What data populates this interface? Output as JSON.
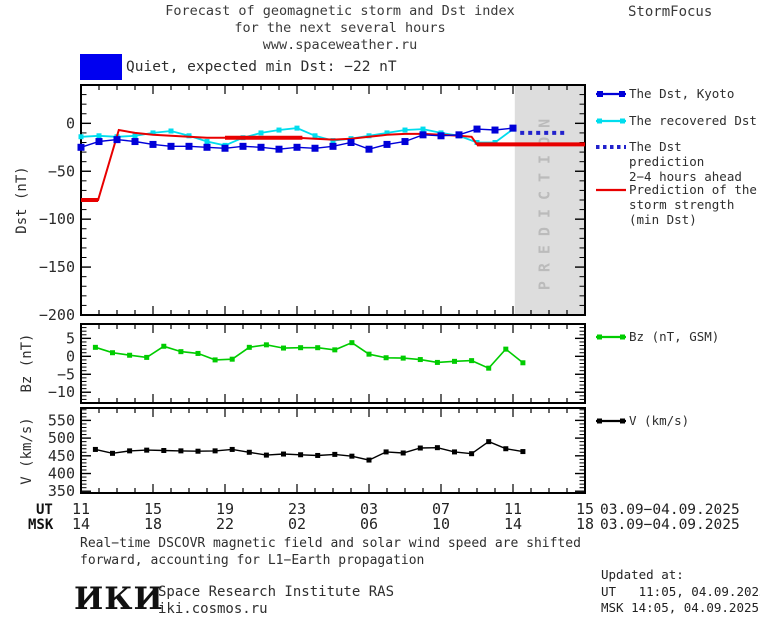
{
  "title": {
    "line1": "Forecast of geomagnetic storm and Dst index",
    "line2": "for the next several hours",
    "line3": "www.spaceweather.ru",
    "brand": "StormFocus"
  },
  "status_banner": {
    "color": "#0000F0",
    "label": "Quiet, expected min Dst: −22 nT"
  },
  "prediction_band": {
    "label": "PREDICTION",
    "fill": "#DDDDDD",
    "text_color": "#BBBBBB"
  },
  "legend": {
    "dst_kyoto": "The Dst, Kyoto",
    "recovered": "The recovered Dst",
    "prediction_line1": "The Dst prediction",
    "prediction_line2": "2−4 hours ahead",
    "storm_line1": "Prediction of the",
    "storm_line2": "storm strength",
    "storm_line3": "(min Dst)",
    "bz": "Bz (nT, GSM)",
    "v": "V (km/s)"
  },
  "xaxis": {
    "ut_label": "UT",
    "msk_label": "MSK",
    "ut_ticks": [
      "11",
      "15",
      "19",
      "23",
      "03",
      "07",
      "11",
      "15"
    ],
    "msk_ticks": [
      "14",
      "18",
      "22",
      "02",
      "06",
      "10",
      "14",
      "18"
    ],
    "ut_date": "03.09−04.09.2025",
    "msk_date": "03.09−04.09.2025"
  },
  "footnote": {
    "line1": "Real−time DSCOVR magnetic field and solar wind speed are shifted",
    "line2": "forward, accounting for L1−Earth propagation"
  },
  "footer": {
    "logo": "ИКИ",
    "institute": "Space Research Institute RAS",
    "site": "iki.cosmos.ru",
    "updated_label": "Updated at:",
    "updated_ut": "UT   11:05, 04.09.2025",
    "updated_msk": "MSK 14:05, 04.09.2025"
  },
  "chart_data": [
    {
      "id": "dst",
      "type": "line",
      "ylabel": "Dst (nT)",
      "yticks": [
        0,
        -50,
        -100,
        -150,
        -200
      ],
      "ylim": [
        40,
        -200
      ],
      "xlim_hours": [
        0,
        28
      ],
      "prediction_band_hours": [
        24.1,
        27.95
      ],
      "series": [
        {
          "name": "recovered_dst",
          "label": "The recovered Dst",
          "color": "#00DDEE",
          "width": 1.8,
          "marker": 5,
          "x": [
            0,
            1,
            2,
            3,
            4,
            5,
            6,
            7,
            8,
            9,
            10,
            11,
            12,
            13,
            14,
            15,
            16,
            17,
            18,
            19,
            20,
            21,
            22,
            23,
            24
          ],
          "y": [
            -14,
            -13,
            -14,
            -13,
            -10,
            -8,
            -13,
            -19,
            -23,
            -15,
            -10,
            -7,
            -5,
            -13,
            -18,
            -16,
            -13,
            -10,
            -7,
            -6,
            -10,
            -13,
            -20,
            -20,
            -6
          ]
        },
        {
          "name": "storm_prediction",
          "label": "Prediction of the storm strength (min Dst)",
          "color": "#E80000",
          "width": 2,
          "marker": 0,
          "x": [
            0,
            0.95,
            2.1,
            3,
            4,
            5,
            6,
            7,
            8,
            9,
            10,
            11,
            12,
            13,
            14,
            15,
            16,
            17,
            18,
            19,
            20,
            21,
            21.7,
            22,
            28
          ],
          "y": [
            -80,
            -80,
            -7,
            -10,
            -12,
            -13,
            -14,
            -15,
            -15,
            -15,
            -15,
            -15,
            -15,
            -16,
            -17,
            -16,
            -14,
            -12,
            -11,
            -11,
            -12,
            -13,
            -14,
            -22,
            -22
          ],
          "thick_segments": [
            [
              0,
              0.95,
              -80
            ],
            [
              8,
              12.3,
              -15
            ],
            [
              22,
              28,
              -22
            ]
          ]
        },
        {
          "name": "dst_kyoto",
          "label": "The Dst, Kyoto",
          "color": "#0000D8",
          "width": 1.4,
          "marker": 7,
          "x": [
            0,
            1,
            2,
            3,
            4,
            5,
            6,
            7,
            8,
            9,
            10,
            11,
            12,
            13,
            14,
            15,
            16,
            17,
            18,
            19,
            20,
            21,
            22,
            23,
            24
          ],
          "y": [
            -25,
            -19,
            -17,
            -19,
            -22,
            -24,
            -24,
            -25,
            -26,
            -24,
            -25,
            -27,
            -25,
            -26,
            -24,
            -20,
            -27,
            -22,
            -19,
            -12,
            -13,
            -12,
            -6,
            -7,
            -5
          ]
        },
        {
          "name": "dst_prediction",
          "label": "The Dst prediction 2−4 hours ahead",
          "color": "#2222CC",
          "width": 4,
          "marker": 0,
          "dash": "4 4",
          "x": [
            24.4,
            27
          ],
          "y": [
            -10,
            -10
          ]
        }
      ]
    },
    {
      "id": "bz",
      "type": "line",
      "ylabel": "Bz (nT)",
      "yticks": [
        5,
        0,
        -5,
        -10
      ],
      "ylim": [
        9,
        -13
      ],
      "xlim_hours": [
        0,
        28
      ],
      "series": [
        {
          "name": "bz_gsm",
          "label": "Bz (nT, GSM)",
          "color": "#00CC00",
          "width": 1.6,
          "marker": 5,
          "x": [
            0.8,
            1.75,
            2.7,
            3.65,
            4.6,
            5.55,
            6.5,
            7.45,
            8.4,
            9.35,
            10.3,
            11.25,
            12.2,
            13.15,
            14.1,
            15.05,
            16,
            16.95,
            17.9,
            18.85,
            19.8,
            20.75,
            21.7,
            22.65,
            23.6,
            24.55
          ],
          "y": [
            2.5,
            1.0,
            0.3,
            -0.3,
            2.8,
            1.3,
            0.8,
            -1.0,
            -0.8,
            2.5,
            3.2,
            2.3,
            2.4,
            2.4,
            1.8,
            3.8,
            0.6,
            -0.4,
            -0.5,
            -0.9,
            -1.7,
            -1.4,
            -1.2,
            -3.3,
            2.0,
            -1.8
          ]
        }
      ]
    },
    {
      "id": "v",
      "type": "line",
      "ylabel": "V (km/s)",
      "yticks": [
        550,
        500,
        450,
        400,
        350
      ],
      "ylim": [
        585,
        345
      ],
      "xlim_hours": [
        0,
        28
      ],
      "series": [
        {
          "name": "solar_wind_speed",
          "label": "V (km/s)",
          "color": "#000000",
          "width": 1.4,
          "marker": 5,
          "x": [
            0.8,
            1.75,
            2.7,
            3.65,
            4.6,
            5.55,
            6.5,
            7.45,
            8.4,
            9.35,
            10.3,
            11.25,
            12.2,
            13.15,
            14.1,
            15.05,
            16,
            16.95,
            17.9,
            18.85,
            19.8,
            20.75,
            21.7,
            22.65,
            23.6,
            24.55
          ],
          "y": [
            468,
            457,
            464,
            466,
            465,
            464,
            463,
            464,
            468,
            460,
            452,
            455,
            453,
            451,
            454,
            449,
            438,
            461,
            458,
            472,
            473,
            461,
            456,
            490,
            470,
            462
          ]
        }
      ]
    }
  ]
}
